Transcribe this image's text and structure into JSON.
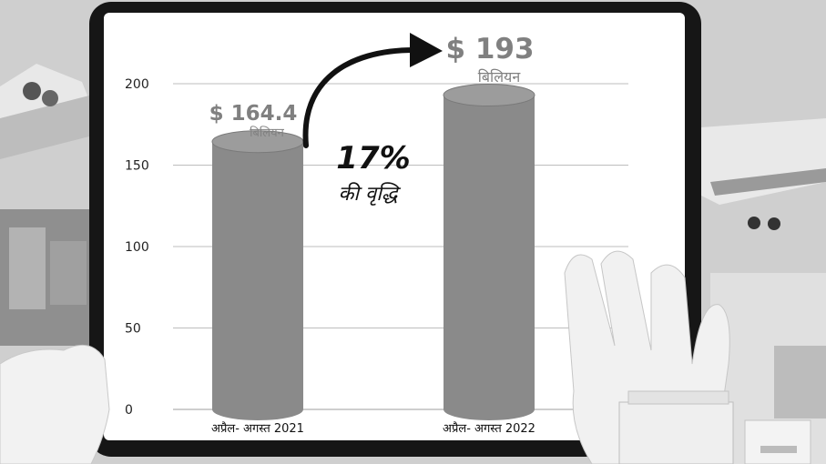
{
  "chart_data": {
    "type": "bar",
    "title": "",
    "xlabel": "",
    "ylabel": "",
    "categories": [
      "अप्रैल- अगस्त 2021",
      "अप्रैल- अगस्त 2022"
    ],
    "values": [
      164.4,
      193
    ],
    "ylim": [
      0,
      200
    ],
    "yticks": [
      0,
      50,
      100,
      150,
      200
    ],
    "grid": true,
    "value_labels": [
      {
        "amount": "$ 164.4",
        "unit": "बिलियन"
      },
      {
        "amount": "$ 193",
        "unit": "बिलियन"
      }
    ],
    "growth": {
      "percent": "17%",
      "text": "की वृद्धि"
    },
    "colors": {
      "bar": "#8a8a8a",
      "bar_top": "#9c9c9c",
      "grid": "#bdbdbd",
      "label": "#808080"
    }
  }
}
